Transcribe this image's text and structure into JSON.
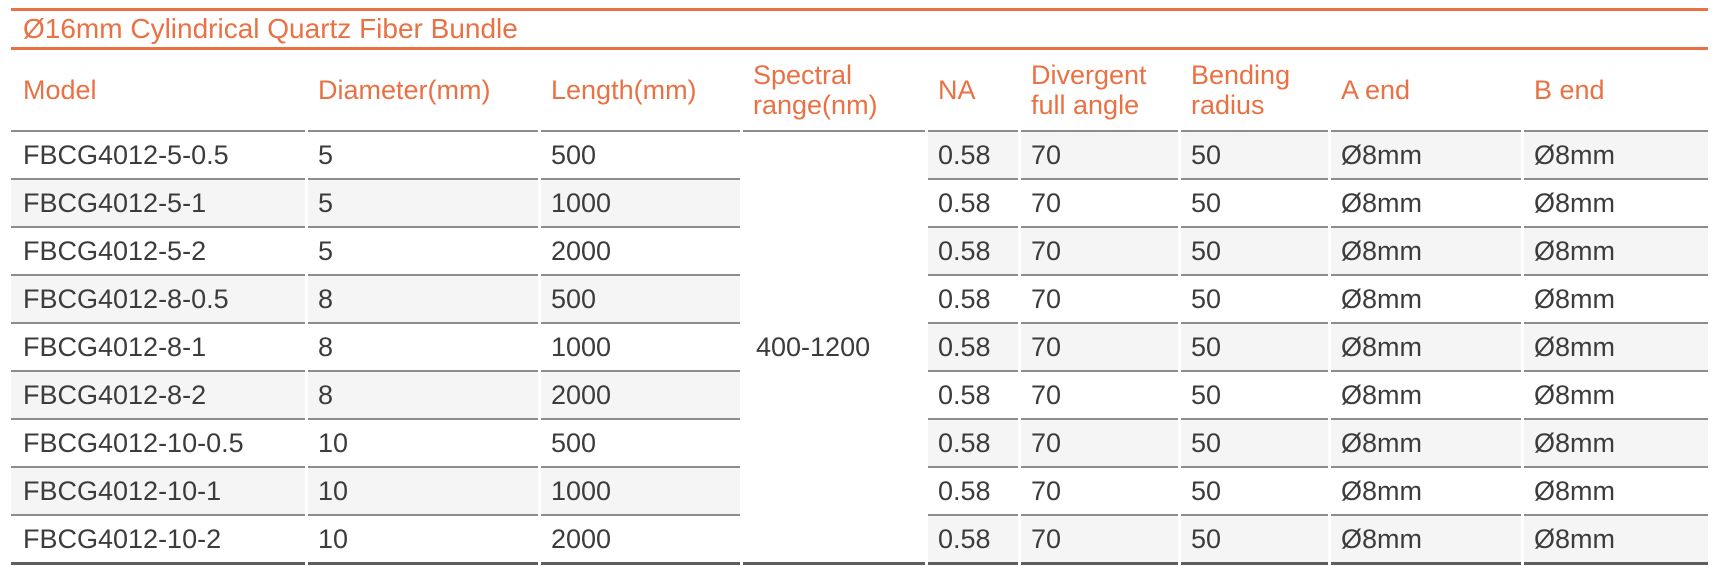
{
  "table": {
    "title": "Ø16mm Cylindrical Quartz Fiber Bundle",
    "columns": [
      "Model",
      "Diameter(mm)",
      "Length(mm)",
      "Spectral range(nm)",
      "NA",
      "Divergent full angle",
      "Bending radius",
      "A end",
      "B end"
    ],
    "spectral_range_value": "400-1200",
    "rows": [
      {
        "model": "FBCG4012-5-0.5",
        "diameter": "5",
        "length": "500",
        "na": "0.58",
        "divergent_full_angle": "70",
        "bending_radius": "50",
        "a_end": "Ø8mm",
        "b_end": "Ø8mm"
      },
      {
        "model": "FBCG4012-5-1",
        "diameter": "5",
        "length": "1000",
        "na": "0.58",
        "divergent_full_angle": "70",
        "bending_radius": "50",
        "a_end": "Ø8mm",
        "b_end": "Ø8mm"
      },
      {
        "model": "FBCG4012-5-2",
        "diameter": "5",
        "length": "2000",
        "na": "0.58",
        "divergent_full_angle": "70",
        "bending_radius": "50",
        "a_end": "Ø8mm",
        "b_end": "Ø8mm"
      },
      {
        "model": "FBCG4012-8-0.5",
        "diameter": "8",
        "length": "500",
        "na": "0.58",
        "divergent_full_angle": "70",
        "bending_radius": "50",
        "a_end": "Ø8mm",
        "b_end": "Ø8mm"
      },
      {
        "model": "FBCG4012-8-1",
        "diameter": "8",
        "length": "1000",
        "na": "0.58",
        "divergent_full_angle": "70",
        "bending_radius": "50",
        "a_end": "Ø8mm",
        "b_end": "Ø8mm"
      },
      {
        "model": "FBCG4012-8-2",
        "diameter": "8",
        "length": "2000",
        "na": "0.58",
        "divergent_full_angle": "70",
        "bending_radius": "50",
        "a_end": "Ø8mm",
        "b_end": "Ø8mm"
      },
      {
        "model": "FBCG4012-10-0.5",
        "diameter": "10",
        "length": "500",
        "na": "0.58",
        "divergent_full_angle": "70",
        "bending_radius": "50",
        "a_end": "Ø8mm",
        "b_end": "Ø8mm"
      },
      {
        "model": "FBCG4012-10-1",
        "diameter": "10",
        "length": "1000",
        "na": "0.58",
        "divergent_full_angle": "70",
        "bending_radius": "50",
        "a_end": "Ø8mm",
        "b_end": "Ø8mm"
      },
      {
        "model": "FBCG4012-10-2",
        "diameter": "10",
        "length": "2000",
        "na": "0.58",
        "divergent_full_angle": "70",
        "bending_radius": "50",
        "a_end": "Ø8mm",
        "b_end": "Ø8mm"
      }
    ]
  },
  "colors": {
    "accent_orange": "#EA7143",
    "body_text": "#3C3C3C",
    "row_stripe": "#F5F5F5",
    "row_separator": "#8C8C8C",
    "table_bottom_border": "#5E5E5E"
  }
}
